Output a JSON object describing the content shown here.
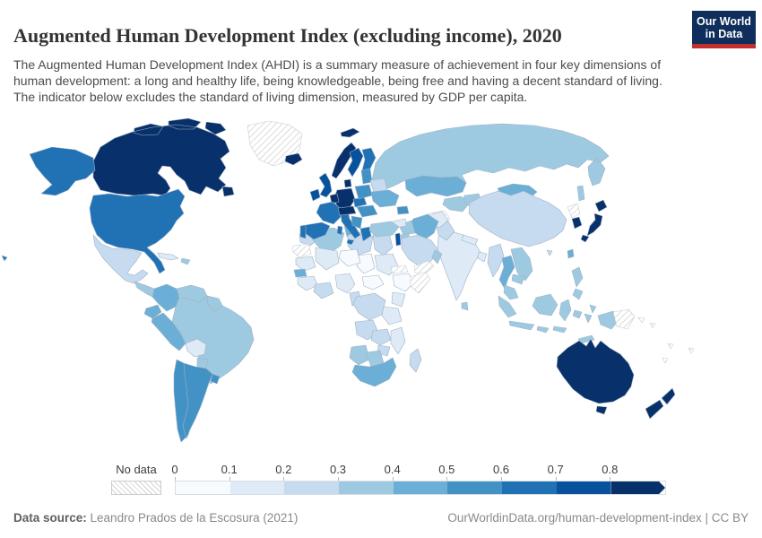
{
  "header": {
    "title": "Augmented Human Development Index (excluding income), 2020",
    "subtitle": "The Augmented Human Development Index (AHDI) is a summary measure of achievement in four key dimensions of human development: a long and healthy life, being knowledgeable, being free and having a decent standard of living. The indicator below excludes the standard of living dimension, measured by GDP per capita.",
    "logo": {
      "line1": "Our World",
      "line2": "in Data",
      "bg_color": "#0f2e5c",
      "accent_color": "#c1302c"
    }
  },
  "legend": {
    "no_data_label": "No data",
    "ticks": [
      "0",
      "0.1",
      "0.2",
      "0.3",
      "0.4",
      "0.5",
      "0.6",
      "0.7",
      "0.8"
    ],
    "bin_colors": [
      "#f7fbff",
      "#deebf7",
      "#c6dbef",
      "#9ecae1",
      "#6baed6",
      "#4292c6",
      "#2171b5",
      "#08519c",
      "#08306b"
    ]
  },
  "footer": {
    "source_label": "Data source:",
    "source_text": " Leandro Prados de la Escosura (2021)",
    "link_text": "OurWorldinData.org/human-development-index | CC BY"
  },
  "chart_data": {
    "type": "heatmap",
    "subtype": "world-choropleth-map",
    "title": "Augmented Human Development Index (excluding income), 2020",
    "year": "2020",
    "value_range": [
      0,
      0.9
    ],
    "legend_position": "bottom",
    "bins": [
      "0-0.1",
      "0.1-0.2",
      "0.2-0.3",
      "0.3-0.4",
      "0.4-0.5",
      "0.5-0.6",
      "0.6-0.7",
      "0.7-0.8",
      "0.8+"
    ],
    "no_data_key": "no-data",
    "countries": {
      "canada": "0.8+",
      "united-states": "0.6-0.7",
      "greenland": "no-data",
      "iceland": "0.8+",
      "mexico": "0.2-0.3",
      "central-america": "0.3-0.4",
      "panama": "0.4-0.5",
      "cuba": "0.1-0.2",
      "hispaniola": "0.3-0.4",
      "colombia": "0.4-0.5",
      "venezuela": "0.3-0.4",
      "guyanas": "0.3-0.4",
      "ecuador": "0.4-0.5",
      "peru": "0.4-0.5",
      "brazil": "0.3-0.4",
      "bolivia": "0.1-0.2",
      "paraguay": "0.3-0.4",
      "chile": "0.5-0.6",
      "argentina": "0.5-0.6",
      "uruguay": "0.5-0.6",
      "norway": "0.8+",
      "sweden": "0.7-0.8",
      "finland": "0.6-0.7",
      "denmark": "0.8+",
      "united-kingdom": "0.7-0.8",
      "ireland": "0.7-0.8",
      "germany": "0.8+",
      "benelux": "0.8+",
      "france": "0.6-0.7",
      "spain": "0.6-0.7",
      "portugal": "0.6-0.7",
      "italy": "0.6-0.7",
      "switzerland-austria": "0.8+",
      "czechia": "0.6-0.7",
      "poland": "0.5-0.6",
      "baltics": "0.5-0.6",
      "belarus": "0.2-0.3",
      "ukraine": "0.4-0.5",
      "hungary-romania": "0.5-0.6",
      "balkans": "0.5-0.6",
      "greece": "0.6-0.7",
      "turkey": "0.3-0.4",
      "georgia": "0.5-0.6",
      "russia": "0.3-0.4",
      "kazakhstan": "0.4-0.5",
      "uzbekistan": "0.3-0.4",
      "turkmenistan": "no-data",
      "kyrgyzstan": "0.3-0.4",
      "mongolia": "0.4-0.5",
      "china": "0.2-0.3",
      "india": "0.1-0.2",
      "pakistan": "0.2-0.3",
      "afghanistan": "0.1-0.2",
      "nepal": "0.1-0.2",
      "bangladesh": "0.1-0.2",
      "sri-lanka": "0.3-0.4",
      "myanmar": "0.2-0.3",
      "thailand": "0.4-0.5",
      "vietnam": "0.3-0.4",
      "cambodia": "0.3-0.4",
      "malaysia": "0.3-0.4",
      "indonesia": "0.3-0.4",
      "philippines": "0.3-0.4",
      "taiwan": "0.4-0.5",
      "japan": "0.8+",
      "south-korea": "0.8+",
      "north-korea": "no-data",
      "iran": "0.4-0.5",
      "iraq": "0.3-0.4",
      "syria": "0.1-0.2",
      "israel": "0.7-0.8",
      "jordan": "0.3-0.4",
      "saudi-arabia": "0.2-0.3",
      "yemen": "no-data",
      "oman": "0.3-0.4",
      "morocco": "0.2-0.3",
      "western-sahara": "no-data",
      "mauritania": "0.1-0.2",
      "algeria": "0.3-0.4",
      "tunisia": "0.4-0.5",
      "libya": "0.2-0.3",
      "egypt": "0.2-0.3",
      "sudan": "0.1-0.2",
      "chad": "0-0.1",
      "niger": "0-0.1",
      "mali": "0.1-0.2",
      "senegal": "0.4-0.5",
      "guinea-region": "0.1-0.2",
      "ghana-ivory-coast": "0.2-0.3",
      "nigeria": "0.1-0.2",
      "cameroon": "0.2-0.3",
      "central-african-republic": "0-0.1",
      "ethiopia": "0-0.1",
      "eritrea": "no-data",
      "somalia": "no-data",
      "kenya": "0.1-0.2",
      "dr-congo": "0.2-0.3",
      "tanzania": "0.1-0.2",
      "angola": "0.2-0.3",
      "zambia": "0.2-0.3",
      "mozambique": "0.1-0.2",
      "zimbabwe": "0.2-0.3",
      "namibia": "0.3-0.4",
      "botswana": "0.3-0.4",
      "south-africa": "0.4-0.5",
      "madagascar": "0.2-0.3",
      "west-papua": "0.3-0.4",
      "papua-new-guinea": "no-data",
      "australia": "0.8+",
      "new-zealand": "0.8+",
      "pacific-islands": "no-data"
    }
  }
}
